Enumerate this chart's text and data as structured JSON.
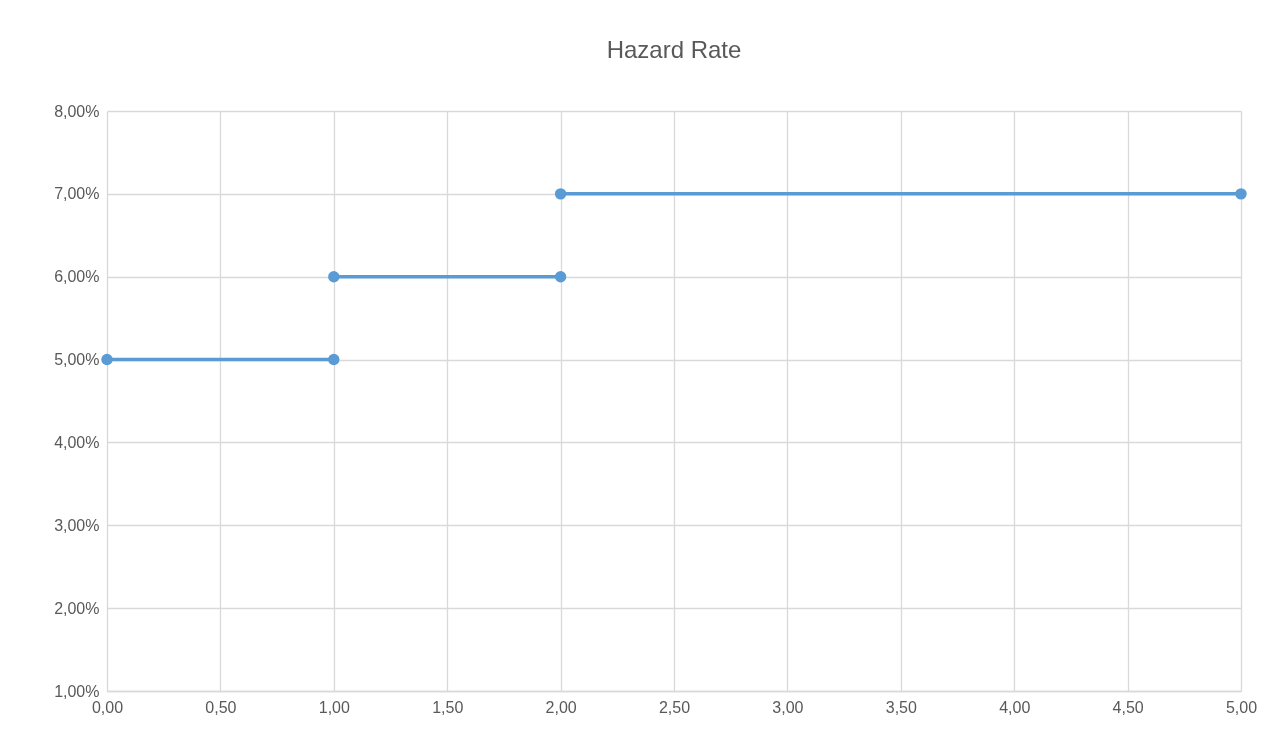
{
  "chart_data": {
    "type": "line",
    "title": "Hazard Rate",
    "series": [
      {
        "color": "#5b9bd5",
        "x": [
          0,
          1
        ],
        "values": [
          5,
          5
        ]
      },
      {
        "color": "#5b9bd5",
        "x": [
          1,
          2
        ],
        "values": [
          6,
          6
        ]
      },
      {
        "color": "#5b9bd5",
        "x": [
          2,
          5
        ],
        "values": [
          7,
          7
        ]
      }
    ],
    "xlim": [
      0,
      5
    ],
    "xticks": [
      {
        "value": 0,
        "label": "0,00"
      },
      {
        "value": 0.5,
        "label": "0,50"
      },
      {
        "value": 1,
        "label": "1,00"
      },
      {
        "value": 1.5,
        "label": "1,50"
      },
      {
        "value": 2,
        "label": "2,00"
      },
      {
        "value": 2.5,
        "label": "2,50"
      },
      {
        "value": 3,
        "label": "3,00"
      },
      {
        "value": 3.5,
        "label": "3,50"
      },
      {
        "value": 4,
        "label": "4,00"
      },
      {
        "value": 4.5,
        "label": "4,50"
      },
      {
        "value": 5,
        "label": "5,00"
      }
    ],
    "ylim": [
      1,
      8
    ],
    "yticks": [
      {
        "value": 1,
        "label": "1,00%"
      },
      {
        "value": 2,
        "label": "2,00%"
      },
      {
        "value": 3,
        "label": "3,00%"
      },
      {
        "value": 4,
        "label": "4,00%"
      },
      {
        "value": 5,
        "label": "5,00%"
      },
      {
        "value": 6,
        "label": "6,00%"
      },
      {
        "value": 7,
        "label": "7,00%"
      },
      {
        "value": 8,
        "label": "8,00%"
      }
    ],
    "grid": true,
    "marker": "circle",
    "line_style": "solid"
  }
}
